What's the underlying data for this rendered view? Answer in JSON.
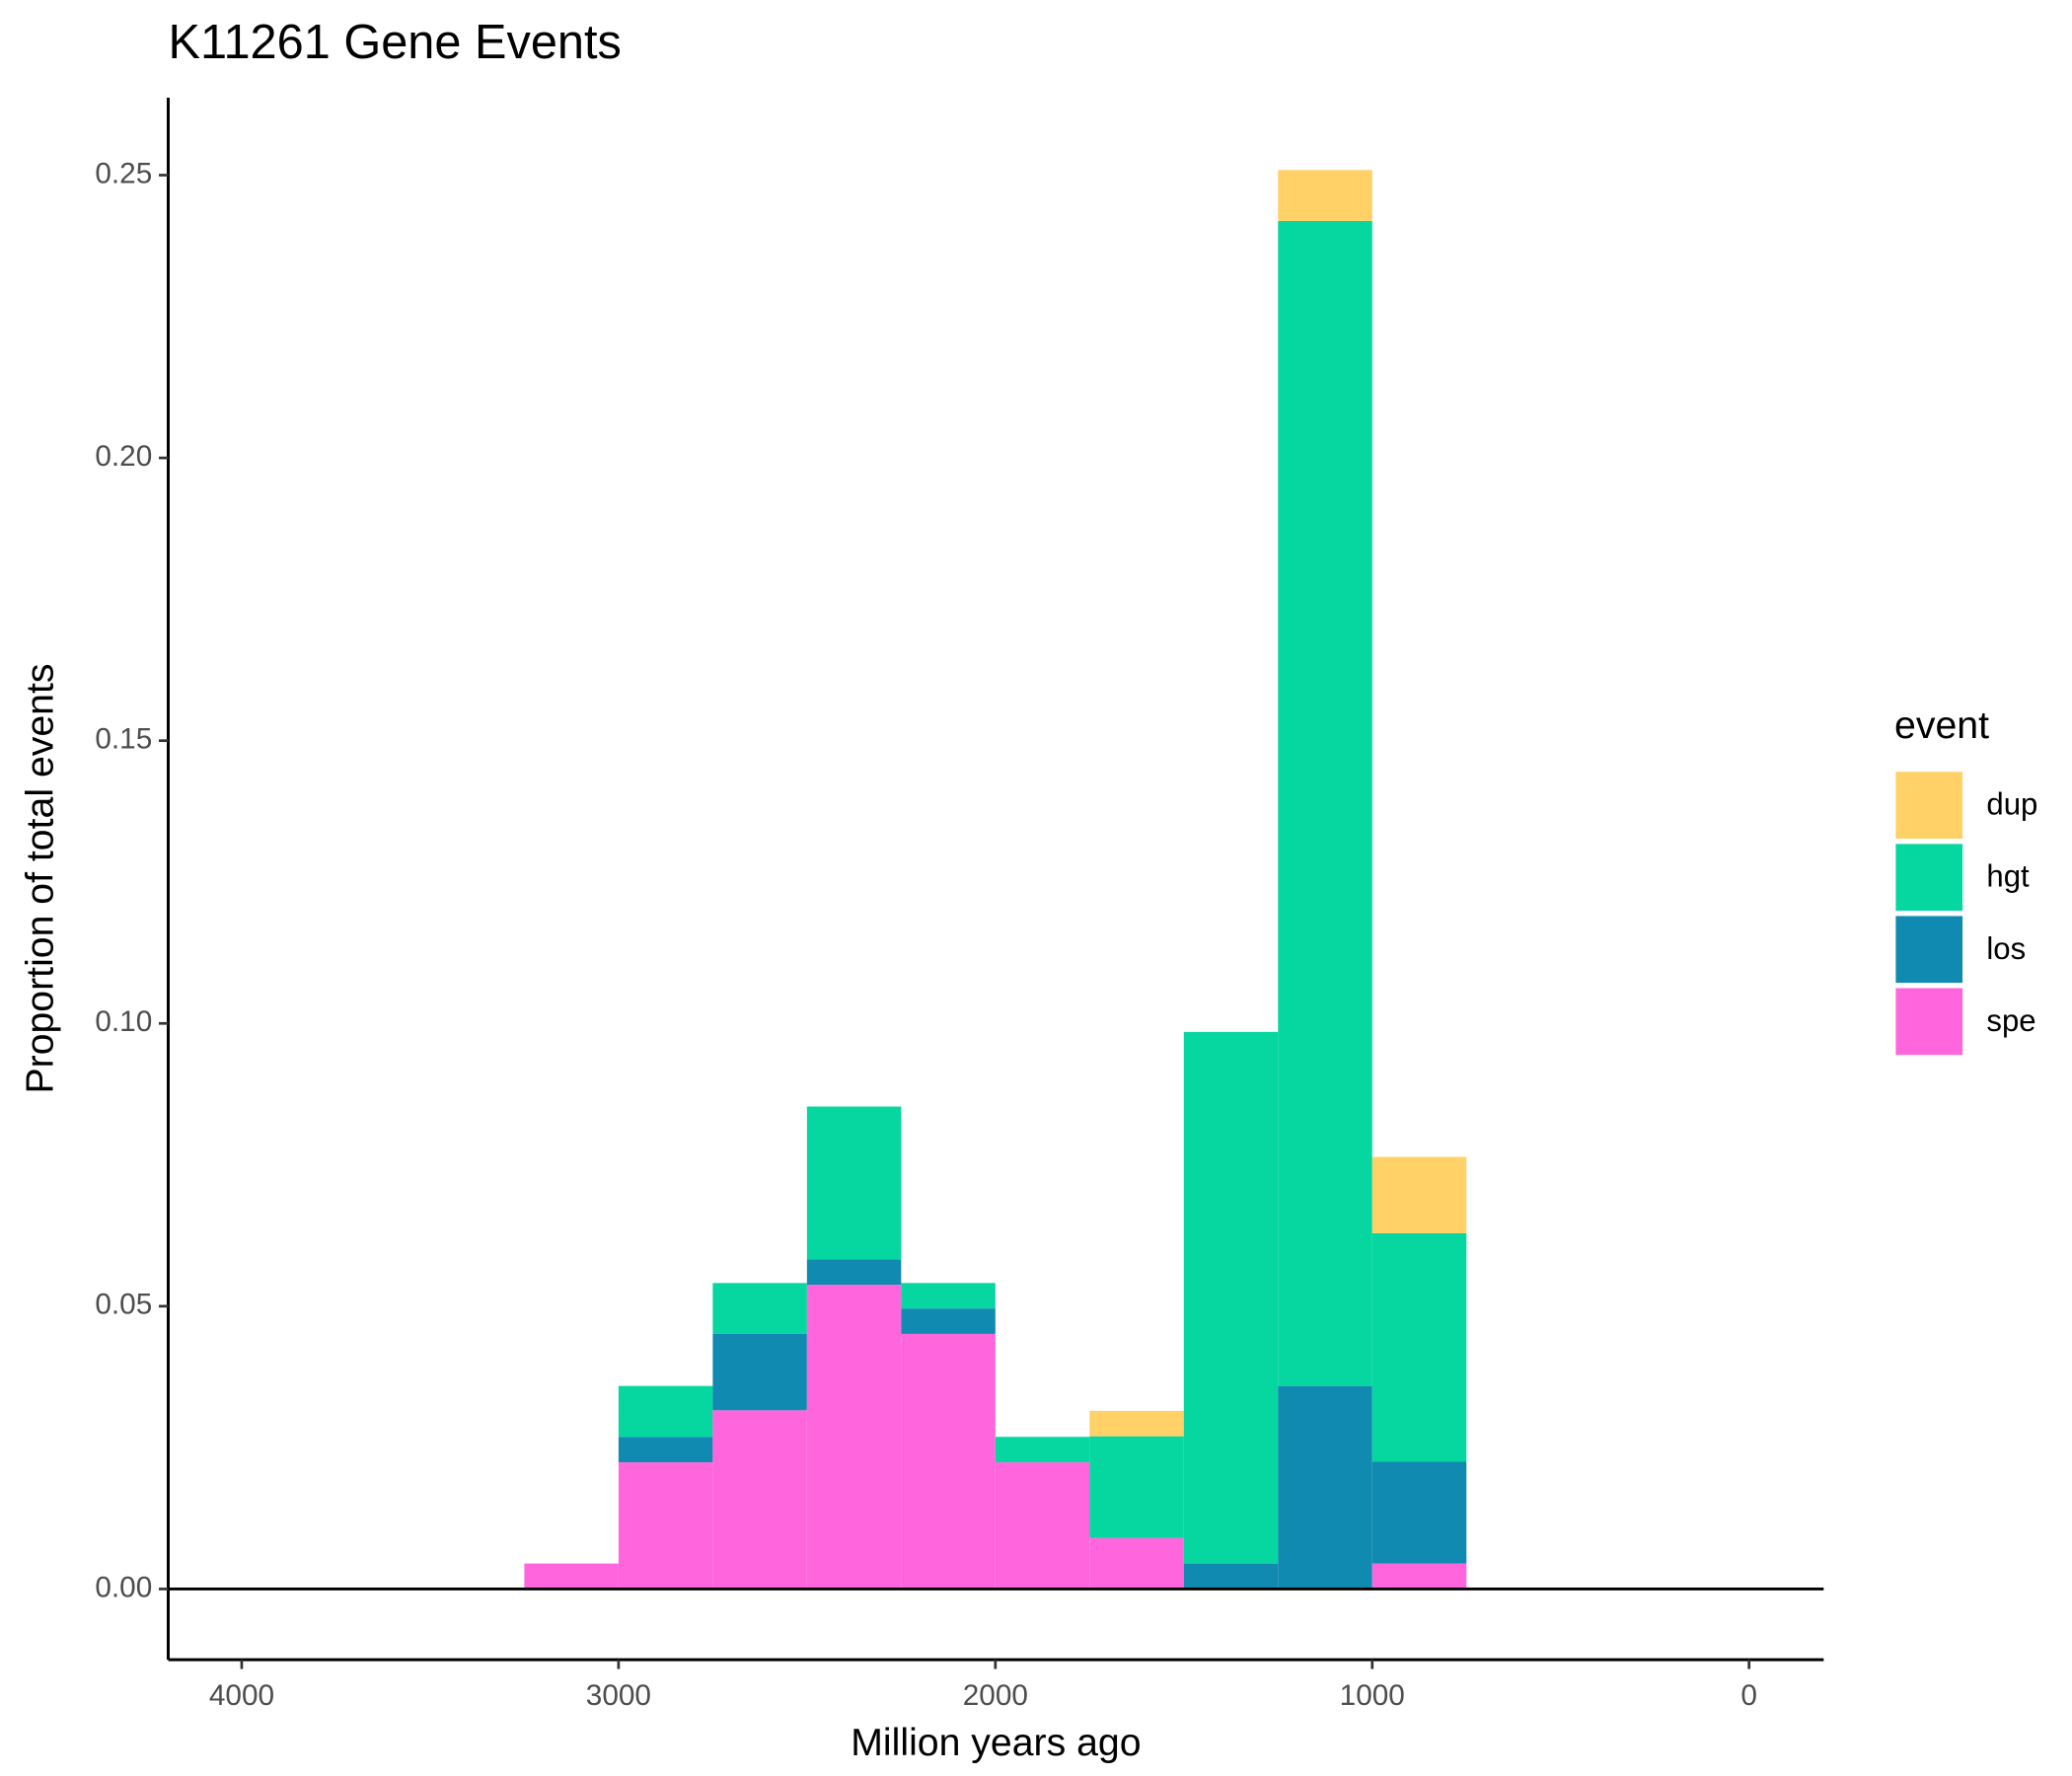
{
  "chart_data": {
    "type": "histogram",
    "title": "K11261 Gene Events",
    "x_label": "Million years ago",
    "y_label": "Proportion of total events",
    "legend_title": "event",
    "legend_position": "right",
    "stacked": true,
    "bins": [
      3250,
      3000,
      2750,
      2500,
      2250,
      2000,
      1750,
      1500,
      1250,
      1000,
      750
    ],
    "series": [
      {
        "name": "dup",
        "color": "#FFD166",
        "values": [
          0,
          0,
          0,
          0,
          0,
          0,
          0.0045,
          0,
          0.009,
          0.0135
        ]
      },
      {
        "name": "hgt",
        "color": "#06D6A0",
        "values": [
          0,
          0.009,
          0.009,
          0.027,
          0.0045,
          0.0045,
          0.018,
          0.094,
          0.206,
          0.0404
        ]
      },
      {
        "name": "los",
        "color": "#118AB2",
        "values": [
          0,
          0.0045,
          0.0135,
          0.0045,
          0.0045,
          0,
          0,
          0.0045,
          0.0359,
          0.018
        ]
      },
      {
        "name": "spe",
        "color": "#FF66DD",
        "values": [
          0.0045,
          0.0224,
          0.0316,
          0.0538,
          0.0451,
          0.0224,
          0.009,
          0,
          0,
          0.0045
        ]
      }
    ],
    "xlim": [
      4195,
      -198
    ],
    "xticks": [
      4000,
      3000,
      2000,
      1000,
      0
    ],
    "ylim": [
      -0.0125,
      0.2637
    ],
    "yticks": [
      {
        "value": 0,
        "label": "0.00"
      },
      {
        "value": 0.05,
        "label": "0.05"
      },
      {
        "value": 0.1,
        "label": "0.10"
      },
      {
        "value": 0.15,
        "label": "0.15"
      },
      {
        "value": 0.2,
        "label": "0.20"
      },
      {
        "value": 0.25,
        "label": "0.25"
      }
    ],
    "hline": 0
  }
}
